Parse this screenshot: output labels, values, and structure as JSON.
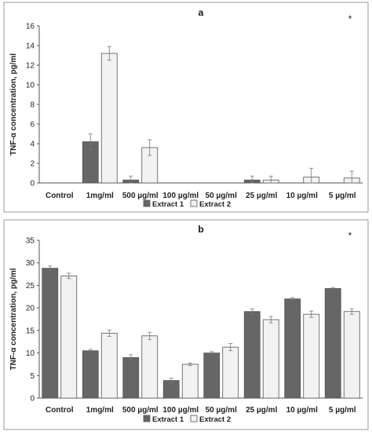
{
  "colors": {
    "extract1": "#666666",
    "extract2": "#f2f2f2",
    "border": "#555555",
    "grid": "#bfbfbf"
  },
  "chart_data": [
    {
      "type": "bar",
      "title": "a",
      "ylabel": "TNF-α concentration, pg/ml",
      "annotation": "*",
      "categories": [
        "Control",
        "1mg/ml",
        "500 µg/ml",
        "100 µg/ml",
        "50 µg/ml",
        "25 µg/ml",
        "10 µg/ml",
        "5 µg/ml"
      ],
      "ylim": [
        0,
        16
      ],
      "yticks": [
        0,
        2,
        4,
        6,
        8,
        10,
        12,
        14,
        16
      ],
      "grid": false,
      "legend": "bottom",
      "series": [
        {
          "name": "Extract 1",
          "values": [
            0,
            4.2,
            0.3,
            0,
            0,
            0.3,
            0,
            0
          ],
          "errors": [
            0,
            0.8,
            0.4,
            0,
            0,
            0.4,
            0,
            0
          ]
        },
        {
          "name": "Extract 2",
          "values": [
            0,
            13.2,
            3.6,
            0,
            0,
            0.3,
            0.6,
            0.5
          ],
          "errors": [
            0,
            0.7,
            0.8,
            0,
            0,
            0.4,
            0.9,
            0.7
          ]
        }
      ]
    },
    {
      "type": "bar",
      "title": "b",
      "ylabel": "TNF-α concentration, pg/ml",
      "annotation": "*",
      "categories": [
        "Control",
        "1mg/ml",
        "500 µg/ml",
        "100 µg/ml",
        "50 µg/ml",
        "25 µg/ml",
        "10 µg/ml",
        "5 µg/ml"
      ],
      "ylim": [
        0,
        35
      ],
      "yticks": [
        0,
        5,
        10,
        15,
        20,
        25,
        30,
        35
      ],
      "grid": false,
      "legend": "bottom",
      "series": [
        {
          "name": "Extract 1",
          "values": [
            28.8,
            10.5,
            9.0,
            3.9,
            10.0,
            19.2,
            22.0,
            24.3
          ],
          "errors": [
            0.5,
            0.3,
            0.6,
            0.5,
            0.3,
            0.6,
            0.3,
            0.2
          ]
        },
        {
          "name": "Extract 2",
          "values": [
            27.1,
            14.4,
            13.8,
            7.5,
            11.3,
            17.4,
            18.6,
            19.2
          ],
          "errors": [
            0.6,
            0.7,
            0.8,
            0.3,
            0.8,
            0.7,
            0.7,
            0.6
          ]
        }
      ]
    }
  ]
}
